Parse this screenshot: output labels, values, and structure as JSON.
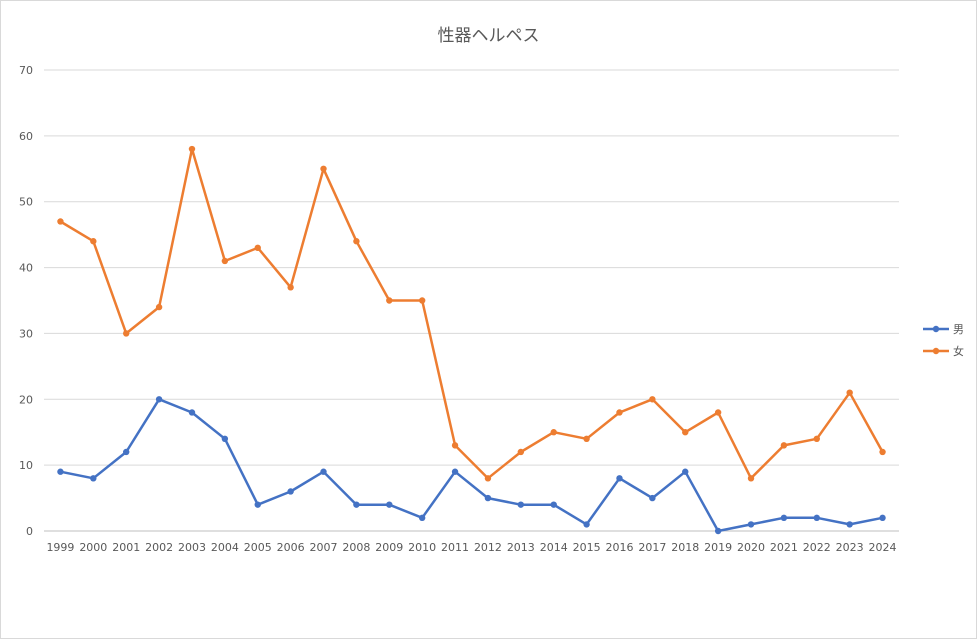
{
  "chart_data": {
    "type": "line",
    "title": "性器ヘルペス",
    "xlabel": "",
    "ylabel": "",
    "ylim": [
      0,
      70
    ],
    "yticks": [
      0,
      10,
      20,
      30,
      40,
      50,
      60,
      70
    ],
    "grid": true,
    "legend_position": "right",
    "categories": [
      "1999",
      "2000",
      "2001",
      "2002",
      "2003",
      "2004",
      "2005",
      "2006",
      "2007",
      "2008",
      "2009",
      "2010",
      "2011",
      "2012",
      "2013",
      "2014",
      "2015",
      "2016",
      "2017",
      "2018",
      "2019",
      "2020",
      "2021",
      "2022",
      "2023",
      "2024"
    ],
    "series": [
      {
        "name": "男",
        "color": "#4472c4",
        "values": [
          9,
          8,
          12,
          20,
          18,
          14,
          4,
          6,
          9,
          4,
          4,
          2,
          9,
          5,
          4,
          4,
          1,
          8,
          5,
          9,
          0,
          1,
          2,
          2,
          1,
          2
        ]
      },
      {
        "name": "女",
        "color": "#ed7d31",
        "values": [
          47,
          44,
          30,
          34,
          58,
          41,
          43,
          37,
          55,
          44,
          35,
          35,
          13,
          8,
          12,
          15,
          14,
          18,
          20,
          15,
          18,
          8,
          13,
          14,
          21,
          12
        ]
      }
    ]
  }
}
